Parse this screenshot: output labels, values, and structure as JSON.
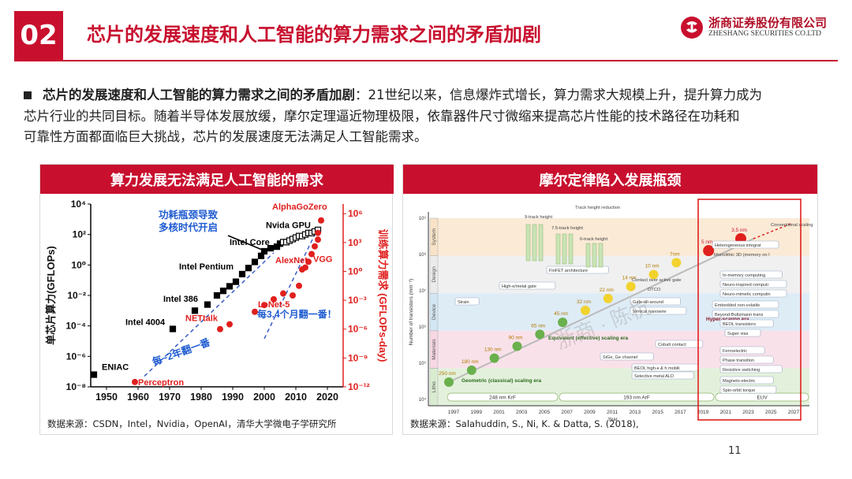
{
  "slide": {
    "number": "02",
    "title": "芯片的发展速度和人工智能的算力需求之间的矛盾加剧",
    "page": "11"
  },
  "brand": {
    "name_cn": "浙商证券股份有限公司",
    "name_en": "ZHESHANG SECURITIES CO.LTD",
    "colors": {
      "primary": "#c8102e"
    }
  },
  "bullet": {
    "lead": "芯片的发展速度和人工智能的算力需求之间的矛盾加剧",
    "line1": "：21世纪以来，信息爆炸式增长，算力需求大规模上升，提升算力成为",
    "line2": "芯片行业的共同目标。随着半导体发展放缓，摩尔定理逼近物理极限，依靠器件尺寸微缩来提高芯片性能的技术路径在功耗和",
    "line3": "可靠性方面都面临巨大挑战，芯片的发展速度无法满足人工智能需求。"
  },
  "left_panel": {
    "header": "算力发展无法满足人工智能的需求",
    "source": "数据来源：CSDN，Intel，Nvidia，OpenAI，清华大学微电子学研究所"
  },
  "right_panel": {
    "header": "摩尔定律陷入发展瓶颈",
    "source": "数据来源：Salahuddin, S., Ni, K. & Datta, S. (2018),",
    "watermark": "浙商 · 陈杭"
  },
  "chart_data": [
    {
      "type": "scatter",
      "ylabel": "单芯片算力(GFLOPs)",
      "y2label": "训练算力需求 (GFLOPs-day)",
      "xlim": [
        1945,
        2025
      ],
      "x_ticks": [
        "1950",
        "1960",
        "1970",
        "1980",
        "1990",
        "2000",
        "2010",
        "2020"
      ],
      "y_ticks": [
        "10⁻⁸",
        "10⁻⁶",
        "10⁻⁴",
        "10⁻²",
        "10⁰",
        "10²",
        "10⁴"
      ],
      "y2_ticks": [
        "10⁻¹²",
        "10⁻⁹",
        "10⁻⁶",
        "10⁻³",
        "10⁰",
        "10³",
        "10⁶"
      ],
      "ylim_log10": [
        -8,
        4
      ],
      "y2lim_log10": [
        -12,
        7
      ],
      "series": [
        {
          "name": "单芯片算力",
          "axis": "left",
          "color": "#000000",
          "points": [
            [
              1946,
              -7.2
            ],
            [
              1971,
              -4.2
            ],
            [
              1978,
              -3.0
            ],
            [
              1982,
              -2.6
            ],
            [
              1985,
              -2.0
            ],
            [
              1987,
              -1.7
            ],
            [
              1989,
              -1.4
            ],
            [
              1991,
              -1.1
            ],
            [
              1993,
              -0.6
            ],
            [
              1995,
              -0.2
            ],
            [
              1997,
              0.2
            ],
            [
              1999,
              0.6
            ],
            [
              2000,
              0.9
            ],
            [
              2002,
              1.1
            ],
            [
              2004,
              1.2
            ],
            [
              2005,
              1.4
            ],
            [
              2006,
              1.5
            ],
            [
              2007,
              1.5
            ],
            [
              2008,
              1.6
            ],
            [
              2009,
              1.7
            ],
            [
              2010,
              1.8
            ],
            [
              2011,
              1.9
            ],
            [
              2012,
              1.9
            ],
            [
              2013,
              2.0
            ],
            [
              2014,
              2.1
            ],
            [
              2015,
              2.1
            ],
            [
              2016,
              2.2
            ],
            [
              2017,
              2.3
            ]
          ]
        },
        {
          "name": "训练算力需求",
          "axis": "right",
          "color": "#e0201e",
          "points": [
            [
              1959,
              -11.5
            ],
            [
              1986,
              -6.0
            ],
            [
              1989,
              -5.5
            ],
            [
              1997,
              -4.2
            ],
            [
              2000,
              -3.5
            ],
            [
              2003,
              -2.9
            ],
            [
              2006,
              -2.3
            ],
            [
              2009,
              -2.5
            ],
            [
              2011,
              -1.5
            ],
            [
              2012,
              0.2
            ],
            [
              2013,
              0.4
            ],
            [
              2014,
              1.0
            ],
            [
              2015,
              1.8
            ],
            [
              2016,
              2.6
            ],
            [
              2017,
              3.3
            ],
            [
              2017,
              4.0
            ],
            [
              2018,
              5.3
            ]
          ]
        }
      ],
      "labels": [
        {
          "text": "ENIAC",
          "x": 1946,
          "y": -7.2,
          "color": "#000000"
        },
        {
          "text": "Intel 4004",
          "x": 1971,
          "y": -4.2,
          "color": "#000000"
        },
        {
          "text": "Intel 386",
          "x": 1985,
          "y": -2.0,
          "color": "#000000"
        },
        {
          "text": "Intel Pentium",
          "x": 1993,
          "y": -0.6,
          "color": "#000000"
        },
        {
          "text": "Intel Core",
          "x": 2004,
          "y": 1.2,
          "color": "#000000"
        },
        {
          "text": "Nvida GPU",
          "x": 2011,
          "y": 1.9,
          "color": "#000000"
        },
        {
          "text": "Perceptron",
          "x": 1959,
          "y": -11.5,
          "color": "#e0201e"
        },
        {
          "text": "NETtalk",
          "x": 1986,
          "y": -6.0,
          "color": "#e0201e"
        },
        {
          "text": "LeNet-5",
          "x": 1997,
          "y": -4.2,
          "color": "#e0201e"
        },
        {
          "text": "AlexNet",
          "x": 2012,
          "y": 0.2,
          "color": "#e0201e"
        },
        {
          "text": "VGG",
          "x": 2014,
          "y": 1.0,
          "color": "#e0201e"
        },
        {
          "text": "AlphaGoZero",
          "x": 2018,
          "y": 5.3,
          "color": "#e0201e"
        }
      ],
      "annotations": [
        {
          "text": "功耗瓶颈导致",
          "color": "#1f5bd1"
        },
        {
          "text": "多核时代开启",
          "color": "#1f5bd1"
        },
        {
          "text": "每~2年翻一番",
          "color": "#1f5bd1"
        },
        {
          "text": "每3.4个月翻一番！",
          "color": "#1f5bd1"
        }
      ]
    },
    {
      "type": "scatter",
      "ylabel": "Number of transistors (mm⁻²)",
      "xlabel": "Year",
      "x_ticks": [
        "1997",
        "1999",
        "2001",
        "2003",
        "2005",
        "2007",
        "2009",
        "2011",
        "2013",
        "2015",
        "2017",
        "2019",
        "2021",
        "2023",
        "2025",
        "2027"
      ],
      "y_ticks": [
        "10⁴",
        "10⁵",
        "10⁶",
        "10⁷",
        "10⁸",
        "10⁹"
      ],
      "bands": [
        "Litho",
        "Materials",
        "Device",
        "Design",
        "System"
      ],
      "nodes": [
        "250 nm",
        "180 nm",
        "130 nm",
        "90 nm",
        "65 nm",
        "45 nm",
        "32 nm",
        "22 nm",
        "14 nm",
        "10 nm",
        "7nm",
        "5 nm",
        "3.5 nm"
      ],
      "eras": [
        "Geometric (classical) scaling era",
        "Equivalent (effective) scaling era",
        "Hyper-scaling era"
      ],
      "litho": [
        "248 nm KrF",
        "193 nm ArF",
        "EUV"
      ],
      "tags": [
        "Strain",
        "High-κ/metal gate",
        "FinFET architecture",
        "Track height reduction",
        "9-track height",
        "7.5-track height",
        "6-track height",
        "SiGe, Ge channel",
        "Cobalt contact",
        "BEOL high-κ & h mobility channel materials",
        "Selective metal ALD",
        "Gate-all-around",
        "Vertical nanowire",
        "Contact over active gate",
        "DTCO",
        "Heterogeneous integration",
        "Monolithic 3D (memory on logic, memory plus logic on logic)",
        "In-memory computing",
        "Neuro-inspired computing",
        "Neuro-mimetic computing",
        "Embedded non-volatile memory",
        "Beyond-Boltzmann transistor",
        "BEOL transistors",
        "Super vias",
        "Ferroelectric",
        "Phase transition",
        "Resistive switching",
        "Magneto-electric",
        "Spin-orbit torque",
        "Conventional scaling"
      ]
    }
  ]
}
